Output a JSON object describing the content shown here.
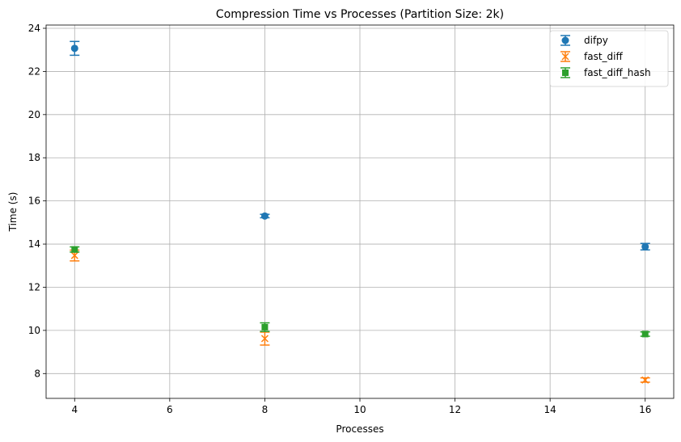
{
  "chart_data": {
    "type": "scatter",
    "title": "Compression Time vs Processes (Partition Size: 2k)",
    "xlabel": "Processes",
    "ylabel": "Time (s)",
    "xlim": [
      3.4,
      16.6
    ],
    "ylim": [
      6.85,
      24.15
    ],
    "xticks": [
      4,
      6,
      8,
      10,
      12,
      14,
      16
    ],
    "yticks": [
      8,
      10,
      12,
      14,
      16,
      18,
      20,
      22,
      24
    ],
    "grid": true,
    "legend_position": "top-right",
    "series": [
      {
        "name": "difpy",
        "color": "#1f77b4",
        "marker": "circle",
        "x": [
          4,
          8,
          16
        ],
        "y": [
          23.07,
          15.3,
          13.88
        ],
        "err": [
          0.32,
          0.08,
          0.15
        ]
      },
      {
        "name": "fast_diff",
        "color": "#ff7f0e",
        "marker": "x",
        "x": [
          4,
          8,
          16
        ],
        "y": [
          13.47,
          9.62,
          7.7
        ],
        "err": [
          0.25,
          0.3,
          0.1
        ]
      },
      {
        "name": "fast_diff_hash",
        "color": "#2ca02c",
        "marker": "square",
        "x": [
          4,
          8,
          16
        ],
        "y": [
          13.75,
          10.15,
          9.83
        ],
        "err": [
          0.12,
          0.2,
          0.1
        ]
      }
    ]
  }
}
